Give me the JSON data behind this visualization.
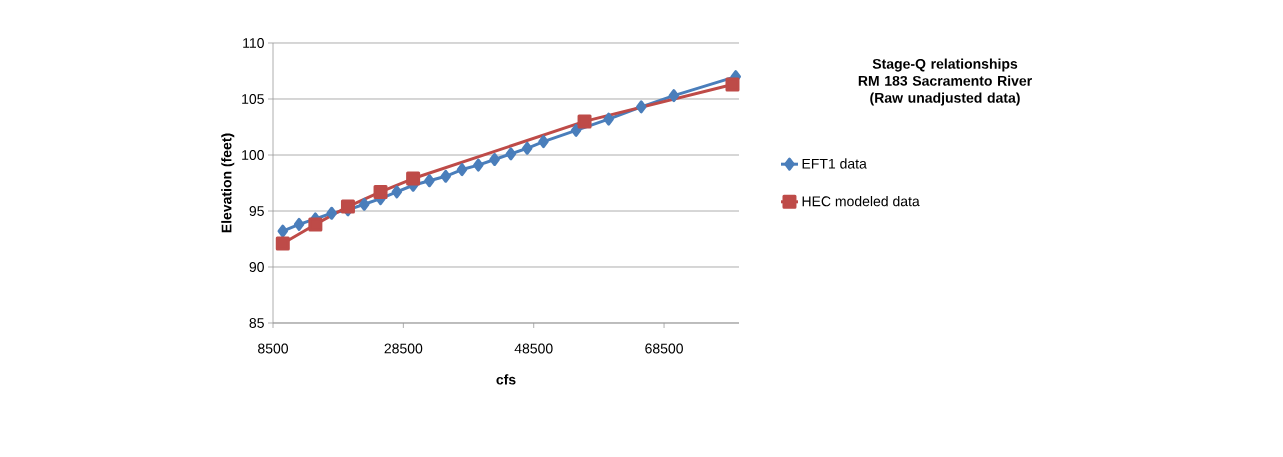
{
  "chart_data": {
    "type": "line",
    "title": "Stage-Q relationships",
    "subtitle": "RM 183 Sacramento River (Raw unadjusted data)",
    "xlabel": "cfs",
    "ylabel": "Elevation (feet)",
    "series": [
      {
        "name": "EFT1 data",
        "color": "#4a7ebb",
        "marker": "diamond",
        "x": [
          10000,
          12500,
          15000,
          17500,
          20000,
          22500,
          25000,
          27500,
          30000,
          32500,
          35000,
          37500,
          40000,
          42500,
          45000,
          47500,
          50000,
          55000,
          60000,
          65000,
          70000,
          79500
        ],
        "values": [
          93.2,
          93.8,
          94.3,
          94.8,
          95.1,
          95.6,
          96.1,
          96.7,
          97.3,
          97.7,
          98.1,
          98.7,
          99.1,
          99.6,
          100.1,
          100.6,
          101.2,
          102.2,
          103.2,
          104.3,
          105.3,
          107.0
        ]
      },
      {
        "name": "HEC modeled data",
        "color": "#be4b48",
        "marker": "square",
        "x": [
          10000,
          15000,
          20000,
          25000,
          30000,
          56300,
          79000
        ],
        "values": [
          92.1,
          93.8,
          95.4,
          96.7,
          97.9,
          103.0,
          106.3
        ]
      }
    ],
    "xlim": [
      8500,
      80000
    ],
    "xticks": [
      8500,
      28500,
      48500,
      68500
    ],
    "ylim": [
      85,
      110
    ],
    "yticks": [
      85,
      90,
      95,
      100,
      105,
      110
    ],
    "grid": "y",
    "legend": "right",
    "line_style": "solid"
  }
}
